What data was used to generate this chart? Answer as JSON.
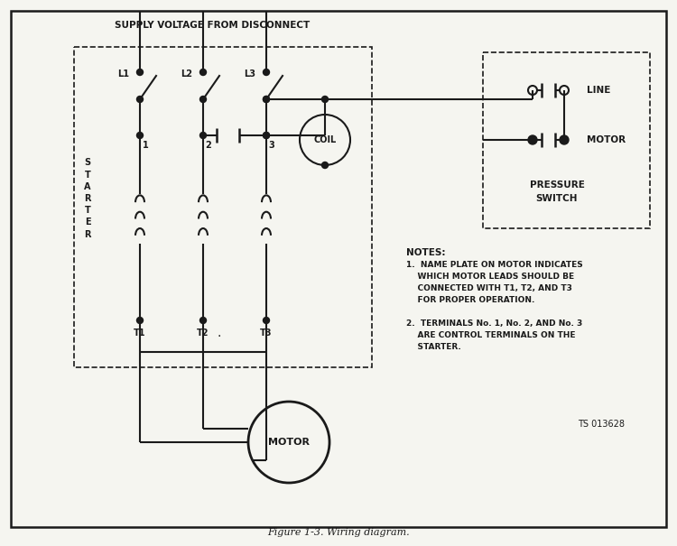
{
  "bg_color": "#f5f5f0",
  "line_color": "#1a1a1a",
  "title": "Figure 1-3. Wiring diagram.",
  "supply_label": "SUPPLY VOLTAGE FROM DISCONNECT",
  "starter_label": "S\nT\nA\nR\nT\nE\nR",
  "pressure_switch_label1": "PRESSURE",
  "pressure_switch_label2": "SWITCH",
  "line_label": "LINE",
  "motor_label": "MOTOR",
  "coil_label": "COIL",
  "ts_label": "TS 013628",
  "notes_title": "NOTES:",
  "note1_line1": "1.  NAME PLATE ON MOTOR INDICATES",
  "note1_line2": "    WHICH MOTOR LEADS SHOULD BE",
  "note1_line3": "    CONNECTED WITH T1, T2, AND T3",
  "note1_line4": "    FOR PROPER OPERATION.",
  "note2_line1": "2.  TERMINALS No. 1, No. 2, AND No. 3",
  "note2_line2": "    ARE CONTROL TERMINALS ON THE",
  "note2_line3": "    STARTER."
}
